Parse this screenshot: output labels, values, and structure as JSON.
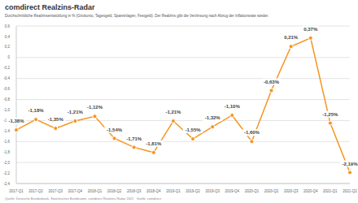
{
  "chart_data": {
    "type": "line",
    "title": "comdirect Realzins-Radar",
    "subtitle": "Durchschnittliche Realzinsentwicklung in % (Girokonto, Tagesgeld, Spareinlagen, Festgeld). Der Realzins gibt die Verzinsung nach Abzug der Inflationsrate wieder.",
    "source": "Quelle: Deutsche Bundesbank, Statistisches Bundesamt, comdirect Realzins-Radar 2021 · Grafik: comdirect",
    "categories": [
      "2017-Q1",
      "2017-Q2",
      "2017-Q3",
      "2017-Q4",
      "2018-Q1",
      "2018-Q2",
      "2018-Q3",
      "2018-Q4",
      "2019-Q1",
      "2019-Q2",
      "2019-Q3",
      "2019-Q4",
      "2020-Q1",
      "2020-Q2",
      "2020-Q3",
      "2020-Q4",
      "2021-Q1",
      "2021-Q2"
    ],
    "values": [
      -1.38,
      -1.18,
      -1.35,
      -1.21,
      -1.12,
      -1.54,
      -1.71,
      -1.81,
      -1.21,
      -1.55,
      -1.32,
      -1.1,
      -1.6,
      -0.63,
      0.21,
      0.37,
      -1.25,
      -2.19
    ],
    "value_labels": [
      "-1,38%",
      "-1,18%",
      "-1,35%",
      "-1,21%",
      "-1,12%",
      "-1,54%",
      "-1,71%",
      "-1,81%",
      "-1,21%",
      "-1,55%",
      "-1,32%",
      "-1,10%",
      "-1,60%",
      "-0,63%",
      "0,21%",
      "0,37%",
      "-1,25%",
      "-2,19%"
    ],
    "color": "#f7941d",
    "marker": "circle",
    "data_labels": true,
    "grid": true,
    "ylim": [
      -2.4,
      0.6
    ],
    "yticks": [
      {
        "value": -2.4,
        "label": "-2,4"
      },
      {
        "value": -2.2,
        "label": "-2,2"
      },
      {
        "value": -2.0,
        "label": "-2,0"
      },
      {
        "value": -1.8,
        "label": "-1,8"
      },
      {
        "value": -1.6,
        "label": "-1,6"
      },
      {
        "value": -1.4,
        "label": "-1,4"
      },
      {
        "value": -1.2,
        "label": "-1,2"
      },
      {
        "value": -1.0,
        "label": "-1,0"
      },
      {
        "value": -0.8,
        "label": "-0,8"
      },
      {
        "value": -0.6,
        "label": "-0,6"
      },
      {
        "value": -0.4,
        "label": "-0,4"
      },
      {
        "value": -0.2,
        "label": "-0,2"
      },
      0,
      {
        "value": 0.2,
        "label": "0,2"
      },
      {
        "value": 0.4,
        "label": "0,4"
      },
      {
        "value": 0.6,
        "label": "0,6"
      }
    ]
  }
}
